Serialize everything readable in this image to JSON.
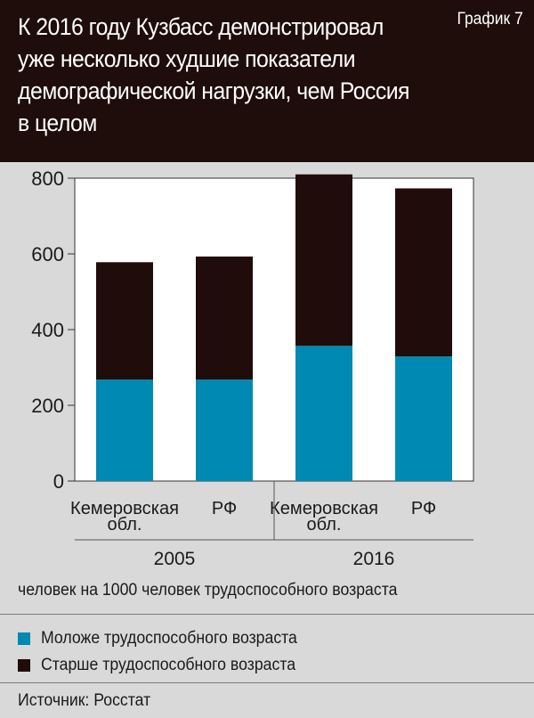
{
  "header": {
    "title_lines": [
      "К 2016 году Кузбасс демонстрировал",
      "уже несколько худшие показатели",
      "демографической нагрузки, чем Россия",
      "в целом"
    ],
    "label": "График 7"
  },
  "chart_data": {
    "type": "bar",
    "stacked": true,
    "title": "К 2016 году Кузбасс демонстрировал уже несколько худшие показатели демографической нагрузки, чем Россия в целом",
    "unit": "человек на 1000 человек трудоспособного возраста",
    "categories": [
      {
        "label_lines": [
          "Кемеровская",
          "обл."
        ],
        "group": "2005"
      },
      {
        "label_lines": [
          "РФ"
        ],
        "group": "2005"
      },
      {
        "label_lines": [
          "Кемеровская",
          "обл."
        ],
        "group": "2016"
      },
      {
        "label_lines": [
          "РФ"
        ],
        "group": "2016"
      }
    ],
    "groups": [
      "2005",
      "2016"
    ],
    "series": [
      {
        "name": "Моложе трудоспособного возраста",
        "color": "#0089b3",
        "values": [
          268,
          268,
          357,
          329
        ]
      },
      {
        "name": "Старше трудоспособного возраста",
        "color": "#200d0b",
        "values": [
          310,
          325,
          453,
          444
        ]
      }
    ],
    "ylim": [
      0,
      800
    ],
    "yticks": [
      0,
      200,
      400,
      600,
      800
    ],
    "grid": false,
    "legend_position": "bottom"
  },
  "source": "Источник: Росстат"
}
